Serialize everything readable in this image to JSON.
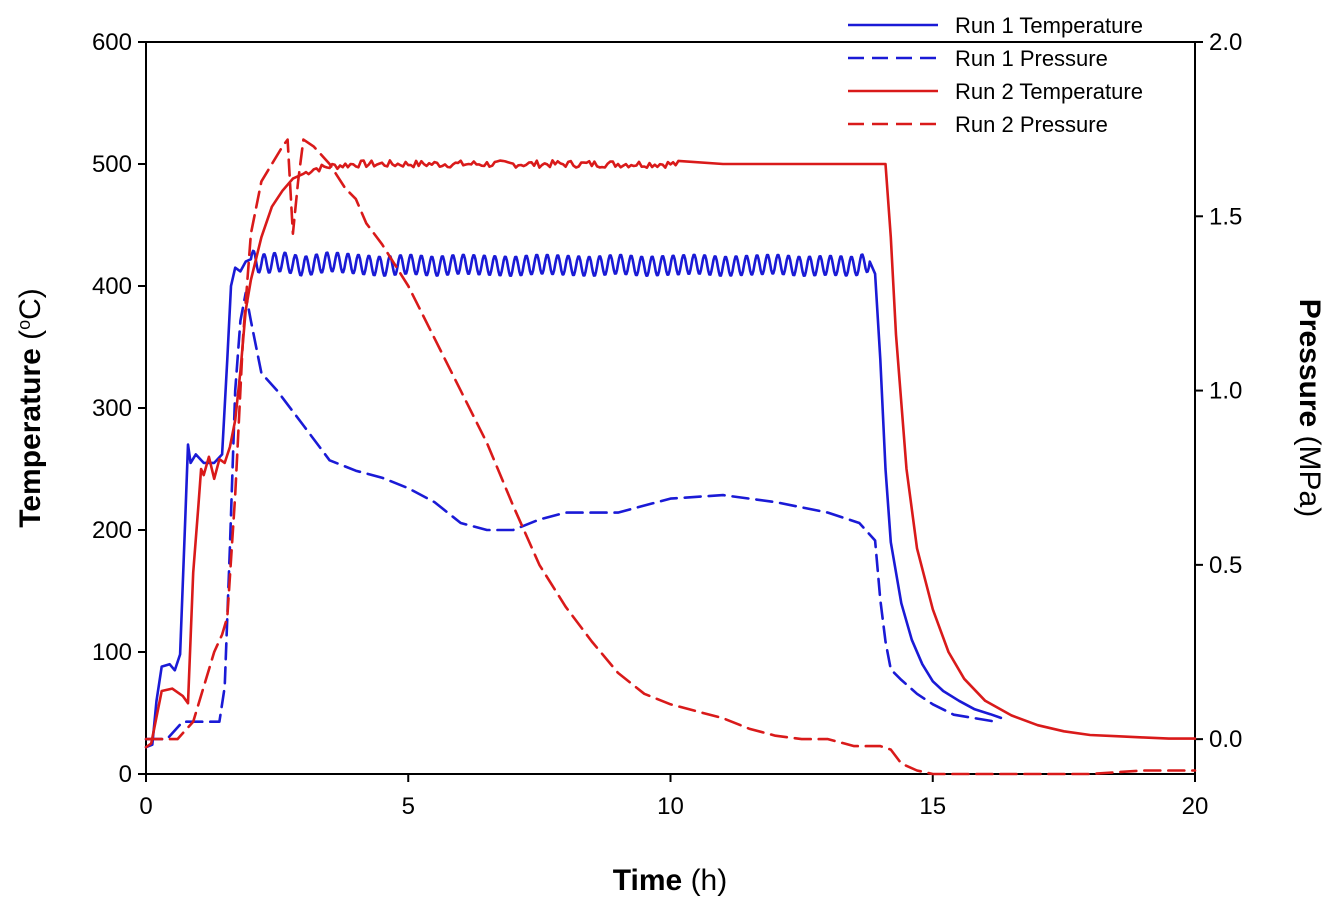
{
  "chart_data": {
    "type": "line",
    "x_axis": {
      "label_bold": "Time",
      "label_unit": " (h)",
      "range": [
        0,
        20
      ],
      "ticks": [
        0,
        5,
        10,
        15,
        20
      ],
      "tick_labels": [
        "0",
        "5",
        "10",
        "15",
        "20"
      ]
    },
    "y_left": {
      "label_bold": "Temperature",
      "label_unit_prefix": " (",
      "label_unit_sup": "o",
      "label_unit_suffix": "C)",
      "range": [
        0,
        600
      ],
      "ticks": [
        0,
        100,
        200,
        300,
        400,
        500,
        600
      ],
      "tick_labels": [
        "0",
        "100",
        "200",
        "300",
        "400",
        "500",
        "600"
      ]
    },
    "y_right": {
      "label_bold": "Pressure",
      "label_unit": " (MPa)",
      "range": [
        -0.1,
        2.0
      ],
      "ticks": [
        0.0,
        0.5,
        1.0,
        1.5,
        2.0
      ],
      "tick_labels": [
        "0.0",
        "0.5",
        "1.0",
        "1.5",
        "2.0"
      ]
    },
    "legend_position": "top-right",
    "series": [
      {
        "name": "Run 1 Temperature",
        "axis": "left",
        "color": "#1a1ad6",
        "dash": "solid",
        "points": [
          [
            0,
            22
          ],
          [
            0.12,
            24
          ],
          [
            0.2,
            60
          ],
          [
            0.3,
            88
          ],
          [
            0.45,
            90
          ],
          [
            0.55,
            85
          ],
          [
            0.65,
            98
          ],
          [
            0.75,
            210
          ],
          [
            0.8,
            270
          ],
          [
            0.85,
            255
          ],
          [
            0.95,
            262
          ],
          [
            1.1,
            255
          ],
          [
            1.3,
            255
          ],
          [
            1.45,
            262
          ],
          [
            1.55,
            340
          ],
          [
            1.62,
            400
          ],
          [
            1.7,
            415
          ],
          [
            1.8,
            412
          ],
          [
            1.9,
            420
          ],
          [
            2.0,
            422
          ],
          [
            2.2,
            418
          ],
          [
            2.6,
            420
          ],
          [
            3,
            416
          ],
          [
            3.5,
            420
          ],
          [
            4,
            418
          ],
          [
            4.5,
            416
          ],
          [
            5,
            418
          ],
          [
            5.5,
            416
          ],
          [
            6,
            418
          ],
          [
            6.5,
            417
          ],
          [
            7,
            416
          ],
          [
            7.5,
            418
          ],
          [
            8,
            417
          ],
          [
            8.5,
            416
          ],
          [
            9,
            418
          ],
          [
            9.5,
            416
          ],
          [
            10,
            417
          ],
          [
            10.5,
            418
          ],
          [
            11,
            416
          ],
          [
            11.5,
            417
          ],
          [
            12,
            418
          ],
          [
            12.5,
            416
          ],
          [
            13,
            417
          ],
          [
            13.5,
            416
          ],
          [
            13.8,
            420
          ],
          [
            13.9,
            410
          ],
          [
            14.0,
            340
          ],
          [
            14.1,
            250
          ],
          [
            14.2,
            190
          ],
          [
            14.4,
            140
          ],
          [
            14.6,
            110
          ],
          [
            14.8,
            90
          ],
          [
            15.0,
            76
          ],
          [
            15.2,
            68
          ],
          [
            15.5,
            60
          ],
          [
            15.8,
            53
          ],
          [
            16.1,
            49
          ],
          [
            16.3,
            46
          ]
        ],
        "oscillation": {
          "start": 2.0,
          "end": 13.8,
          "period": 0.2,
          "amplitude": 8
        }
      },
      {
        "name": "Run 1 Pressure",
        "axis": "right",
        "color": "#1a1ad6",
        "dash": "dashed",
        "points": [
          [
            0,
            0.0
          ],
          [
            0.4,
            0.0
          ],
          [
            0.7,
            0.05
          ],
          [
            0.9,
            0.05
          ],
          [
            1.0,
            0.05
          ],
          [
            1.2,
            0.05
          ],
          [
            1.4,
            0.05
          ],
          [
            1.5,
            0.15
          ],
          [
            1.6,
            0.55
          ],
          [
            1.7,
            1.0
          ],
          [
            1.8,
            1.2
          ],
          [
            1.9,
            1.28
          ],
          [
            2.0,
            1.2
          ],
          [
            2.2,
            1.05
          ],
          [
            2.5,
            1.0
          ],
          [
            3.0,
            0.9
          ],
          [
            3.5,
            0.8
          ],
          [
            4.0,
            0.77
          ],
          [
            4.5,
            0.75
          ],
          [
            5.0,
            0.72
          ],
          [
            5.5,
            0.68
          ],
          [
            6.0,
            0.62
          ],
          [
            6.5,
            0.6
          ],
          [
            7.0,
            0.6
          ],
          [
            7.5,
            0.63
          ],
          [
            8.0,
            0.65
          ],
          [
            9.0,
            0.65
          ],
          [
            10.0,
            0.69
          ],
          [
            11.0,
            0.7
          ],
          [
            12.0,
            0.68
          ],
          [
            13.0,
            0.65
          ],
          [
            13.6,
            0.62
          ],
          [
            13.9,
            0.57
          ],
          [
            14.0,
            0.4
          ],
          [
            14.1,
            0.28
          ],
          [
            14.2,
            0.2
          ],
          [
            14.4,
            0.17
          ],
          [
            14.7,
            0.13
          ],
          [
            15.0,
            0.1
          ],
          [
            15.4,
            0.07
          ],
          [
            15.8,
            0.06
          ],
          [
            16.2,
            0.05
          ]
        ]
      },
      {
        "name": "Run 2 Temperature",
        "axis": "left",
        "color": "#d91a1a",
        "dash": "solid",
        "points": [
          [
            0,
            22
          ],
          [
            0.1,
            25
          ],
          [
            0.3,
            68
          ],
          [
            0.5,
            70
          ],
          [
            0.7,
            64
          ],
          [
            0.8,
            58
          ],
          [
            0.9,
            165
          ],
          [
            1.0,
            220
          ],
          [
            1.05,
            250
          ],
          [
            1.1,
            245
          ],
          [
            1.2,
            260
          ],
          [
            1.3,
            242
          ],
          [
            1.4,
            258
          ],
          [
            1.5,
            255
          ],
          [
            1.6,
            268
          ],
          [
            1.7,
            290
          ],
          [
            1.8,
            330
          ],
          [
            1.9,
            380
          ],
          [
            2.0,
            405
          ],
          [
            2.2,
            440
          ],
          [
            2.4,
            465
          ],
          [
            2.6,
            478
          ],
          [
            2.8,
            488
          ],
          [
            3.0,
            492
          ],
          [
            3.2,
            496
          ],
          [
            3.5,
            498
          ],
          [
            4,
            500
          ],
          [
            5,
            500
          ],
          [
            6,
            500
          ],
          [
            7,
            500
          ],
          [
            8,
            500
          ],
          [
            9,
            500
          ],
          [
            10,
            500
          ],
          [
            11,
            500
          ],
          [
            12,
            500
          ],
          [
            13,
            500
          ],
          [
            14,
            500
          ],
          [
            14.1,
            500
          ],
          [
            14.2,
            440
          ],
          [
            14.3,
            360
          ],
          [
            14.5,
            250
          ],
          [
            14.7,
            185
          ],
          [
            15.0,
            135
          ],
          [
            15.3,
            100
          ],
          [
            15.6,
            78
          ],
          [
            16.0,
            60
          ],
          [
            16.5,
            48
          ],
          [
            17.0,
            40
          ],
          [
            17.5,
            35
          ],
          [
            18.0,
            32
          ],
          [
            18.5,
            31
          ],
          [
            19.0,
            30
          ],
          [
            19.5,
            29
          ],
          [
            20,
            29
          ]
        ],
        "noise": {
          "start": 3.0,
          "end": 10.2,
          "amplitude": 3
        }
      },
      {
        "name": "Run 2 Pressure",
        "axis": "right",
        "color": "#d91a1a",
        "dash": "dashed",
        "points": [
          [
            0,
            0.0
          ],
          [
            0.6,
            0.0
          ],
          [
            0.9,
            0.05
          ],
          [
            1.1,
            0.15
          ],
          [
            1.3,
            0.25
          ],
          [
            1.45,
            0.3
          ],
          [
            1.55,
            0.35
          ],
          [
            1.7,
            0.7
          ],
          [
            1.85,
            1.15
          ],
          [
            2.0,
            1.45
          ],
          [
            2.2,
            1.6
          ],
          [
            2.4,
            1.65
          ],
          [
            2.6,
            1.7
          ],
          [
            2.7,
            1.72
          ],
          [
            2.8,
            1.45
          ],
          [
            2.9,
            1.6
          ],
          [
            3.0,
            1.72
          ],
          [
            3.2,
            1.7
          ],
          [
            3.5,
            1.65
          ],
          [
            3.8,
            1.58
          ],
          [
            4.0,
            1.55
          ],
          [
            4.2,
            1.48
          ],
          [
            4.5,
            1.42
          ],
          [
            5.0,
            1.3
          ],
          [
            5.5,
            1.15
          ],
          [
            6.0,
            1.0
          ],
          [
            6.5,
            0.85
          ],
          [
            7.0,
            0.67
          ],
          [
            7.5,
            0.5
          ],
          [
            8.0,
            0.38
          ],
          [
            8.5,
            0.28
          ],
          [
            9.0,
            0.19
          ],
          [
            9.5,
            0.13
          ],
          [
            10.0,
            0.1
          ],
          [
            10.5,
            0.08
          ],
          [
            11.0,
            0.06
          ],
          [
            11.5,
            0.03
          ],
          [
            12.0,
            0.01
          ],
          [
            12.5,
            0.0
          ],
          [
            13.0,
            0.0
          ],
          [
            13.5,
            -0.02
          ],
          [
            14.0,
            -0.02
          ],
          [
            14.2,
            -0.03
          ],
          [
            14.4,
            -0.07
          ],
          [
            14.7,
            -0.09
          ],
          [
            15.0,
            -0.1
          ],
          [
            16,
            -0.1
          ],
          [
            17,
            -0.1
          ],
          [
            18,
            -0.1
          ],
          [
            19,
            -0.09
          ],
          [
            20,
            -0.09
          ]
        ]
      }
    ]
  }
}
